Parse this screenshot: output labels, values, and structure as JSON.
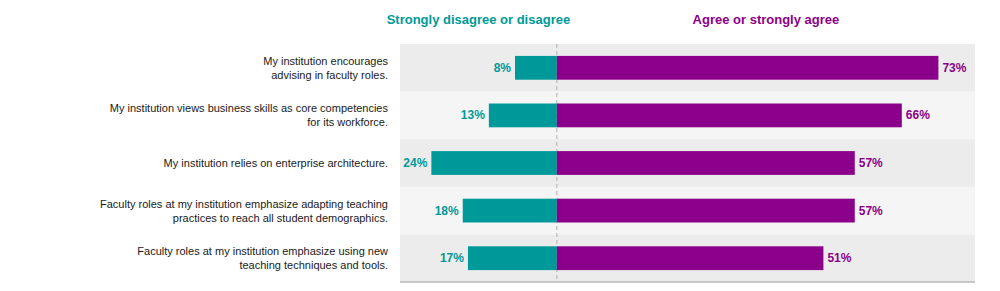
{
  "chart_data": {
    "type": "bar",
    "orientation": "horizontal",
    "categories": [
      "My institution encourages\nadvising in faculty roles.",
      "My institution views business skills as core competencies\nfor its workforce.",
      "My institution relies on enterprise architecture.",
      "Faculty roles at my institution emphasize adapting teaching\npractices to reach all student demographics.",
      "Faculty roles at my institution emphasize using new\nteaching techniques and tools."
    ],
    "series": [
      {
        "name": "Strongly disagree or disagree",
        "color": "#009999",
        "values": [
          8,
          13,
          24,
          18,
          17
        ],
        "value_labels": [
          "8%",
          "13%",
          "24%",
          "18%",
          "17%"
        ]
      },
      {
        "name": "Agree or strongly agree",
        "color": "#8B008B",
        "values": [
          73,
          66,
          57,
          57,
          51
        ],
        "value_labels": [
          "73%",
          "66%",
          "57%",
          "57%",
          "51%"
        ]
      }
    ],
    "xlim": [
      -30,
      80
    ],
    "tick_labels": false,
    "data_labels": true,
    "grid": false
  }
}
